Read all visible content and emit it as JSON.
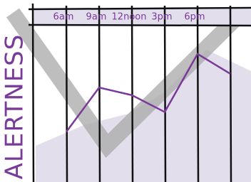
{
  "chart_data": {
    "type": "line",
    "y_label": "ALERTNESS",
    "categories": [
      "6am",
      "9am",
      "12noon",
      "3pm",
      "6pm",
      null
    ],
    "values": [
      3.0,
      5.9,
      5.4,
      4.3,
      8.1,
      6.8
    ],
    "color": "#7a3a9a",
    "ylim": [
      0,
      10
    ]
  }
}
